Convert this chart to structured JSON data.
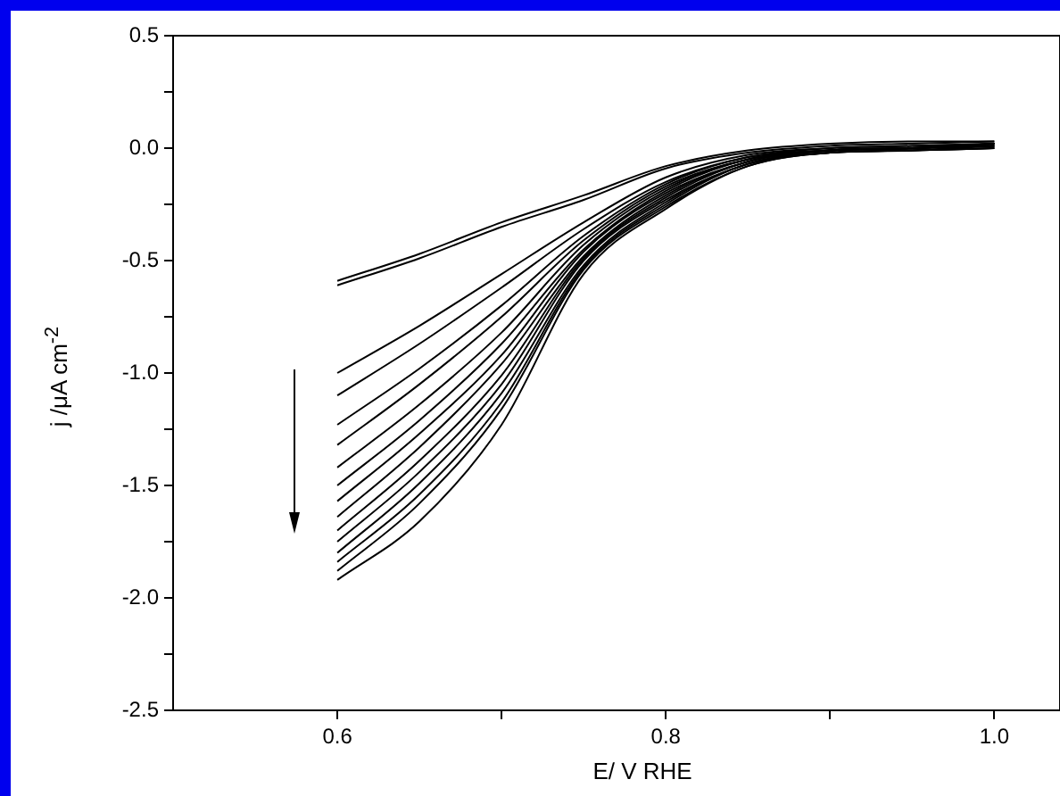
{
  "chart_data": {
    "type": "line",
    "xlabel": "E/ V RHE",
    "ylabel": "j /μA cm$^{-2}$",
    "x": [
      0.6,
      0.65,
      0.7,
      0.75,
      0.8,
      0.85,
      0.9,
      0.95,
      1.0
    ],
    "series": [
      {
        "color": "#000000",
        "values": [
          -0.59,
          -0.47,
          -0.33,
          -0.21,
          -0.08,
          -0.01,
          0.02,
          0.03,
          0.03
        ]
      },
      {
        "color": "#000000",
        "values": [
          -0.61,
          -0.49,
          -0.35,
          -0.23,
          -0.09,
          -0.02,
          0.01,
          0.02,
          0.03
        ]
      },
      {
        "color": "#000000",
        "values": [
          -1.0,
          -0.79,
          -0.56,
          -0.33,
          -0.13,
          -0.03,
          0.0,
          0.01,
          0.02
        ]
      },
      {
        "color": "#000000",
        "values": [
          -1.1,
          -0.87,
          -0.62,
          -0.36,
          -0.15,
          -0.04,
          0.0,
          0.01,
          0.02
        ]
      },
      {
        "color": "#000000",
        "values": [
          -1.23,
          -0.98,
          -0.7,
          -0.39,
          -0.16,
          -0.04,
          -0.01,
          0.0,
          0.02
        ]
      },
      {
        "color": "#000000",
        "values": [
          -1.32,
          -1.05,
          -0.75,
          -0.41,
          -0.17,
          -0.05,
          -0.01,
          0.0,
          0.02
        ]
      },
      {
        "color": "#000000",
        "values": [
          -1.42,
          -1.14,
          -0.82,
          -0.43,
          -0.18,
          -0.05,
          -0.01,
          0.0,
          0.02
        ]
      },
      {
        "color": "#000000",
        "values": [
          -1.5,
          -1.21,
          -0.87,
          -0.45,
          -0.19,
          -0.05,
          -0.01,
          0.0,
          0.02
        ]
      },
      {
        "color": "#000000",
        "values": [
          -1.57,
          -1.27,
          -0.92,
          -0.46,
          -0.2,
          -0.06,
          -0.01,
          0.0,
          0.01
        ]
      },
      {
        "color": "#000000",
        "values": [
          -1.64,
          -1.33,
          -0.96,
          -0.48,
          -0.21,
          -0.06,
          -0.01,
          0.0,
          0.01
        ]
      },
      {
        "color": "#000000",
        "values": [
          -1.7,
          -1.39,
          -1.01,
          -0.49,
          -0.22,
          -0.06,
          -0.01,
          0.0,
          0.01
        ]
      },
      {
        "color": "#000000",
        "values": [
          -1.75,
          -1.44,
          -1.05,
          -0.5,
          -0.23,
          -0.07,
          -0.01,
          0.0,
          0.01
        ]
      },
      {
        "color": "#000000",
        "values": [
          -1.8,
          -1.49,
          -1.09,
          -0.52,
          -0.24,
          -0.07,
          -0.02,
          -0.01,
          0.01
        ]
      },
      {
        "color": "#000000",
        "values": [
          -1.84,
          -1.54,
          -1.13,
          -0.53,
          -0.25,
          -0.07,
          -0.02,
          -0.01,
          0.0
        ]
      },
      {
        "color": "#000000",
        "values": [
          -1.88,
          -1.58,
          -1.16,
          -0.54,
          -0.26,
          -0.08,
          -0.02,
          -0.01,
          0.0
        ]
      },
      {
        "color": "#000000",
        "values": [
          -1.92,
          -1.66,
          -1.23,
          -0.56,
          -0.27,
          -0.08,
          -0.02,
          -0.01,
          0.0
        ]
      }
    ],
    "xlim": [
      0.5,
      1.04
    ],
    "xticks": [
      0.6,
      {
        "value": 0.7,
        "label": null
      },
      0.8,
      {
        "value": 0.9,
        "label": null
      },
      {
        "value": 1.0,
        "label": "1.0"
      }
    ],
    "ylim": [
      -2.5,
      0.5
    ],
    "yticks": [
      -2.5,
      {
        "value": -2.25,
        "label": null
      },
      {
        "value": -2.0,
        "label": "-2.0"
      },
      {
        "value": -1.75,
        "label": null
      },
      -1.5,
      {
        "value": -1.25,
        "label": null
      },
      {
        "value": -1.0,
        "label": "-1.0"
      },
      {
        "value": -0.75,
        "label": null
      },
      -0.5,
      {
        "value": -0.25,
        "label": null
      },
      {
        "value": 0,
        "label": "0.0"
      },
      {
        "value": 0.25,
        "label": null
      },
      0.5
    ],
    "grid": false,
    "legend": false,
    "marker": "none",
    "line_style": "solid"
  }
}
